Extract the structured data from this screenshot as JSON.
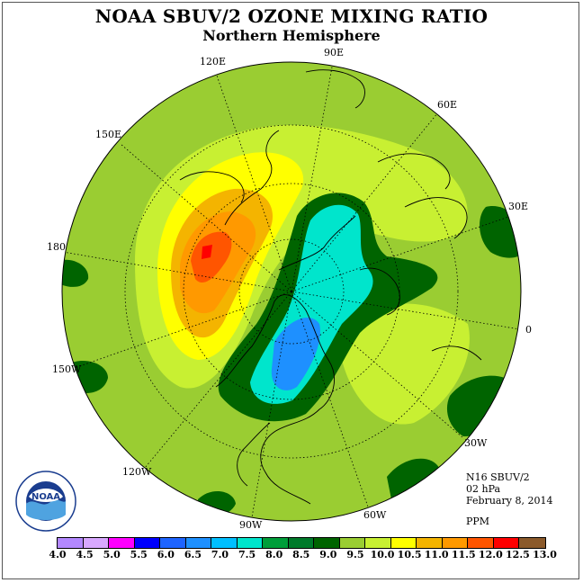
{
  "header": {
    "title": "NOAA SBUV/2 OZONE MIXING RATIO",
    "subtitle": "Northern Hemisphere"
  },
  "map": {
    "longitude_labels": [
      "120E",
      "90E",
      "60E",
      "150E",
      "30E",
      "180",
      "0",
      "150W",
      "30W",
      "120W",
      "60W",
      "90W"
    ],
    "colors": {
      "background_field": "#9ACD32",
      "low": "#00E5CC",
      "lowest": "#1E90FF",
      "mid_low": "#008B45",
      "dark": "#006400",
      "high": "#FFFF00",
      "higher": "#F4B400",
      "highest": "#FF5500",
      "peak": "#FF0000",
      "pale": "#C8F032"
    }
  },
  "info": {
    "instrument": "N16 SBUV/2",
    "level": "02 hPa",
    "date": "February 8, 2014",
    "units": "PPM"
  },
  "colorbar": {
    "ticks": [
      "4.0",
      "4.5",
      "5.0",
      "5.5",
      "6.0",
      "6.5",
      "7.0",
      "7.5",
      "8.0",
      "8.5",
      "9.0",
      "9.5",
      "10.0",
      "10.5",
      "11.0",
      "11.5",
      "12.0",
      "12.5",
      "13.0"
    ],
    "colors": [
      "#B388FF",
      "#D8A8FF",
      "#FF00FF",
      "#0000FF",
      "#1E64FF",
      "#1E90FF",
      "#00BFFF",
      "#00E5CC",
      "#009E3A",
      "#007A2A",
      "#006400",
      "#9ACD32",
      "#C8F032",
      "#FFFF00",
      "#F4B400",
      "#FF9900",
      "#FF5500",
      "#FF0000",
      "#8B5A2B"
    ]
  },
  "logo": {
    "text": "NOAA"
  }
}
